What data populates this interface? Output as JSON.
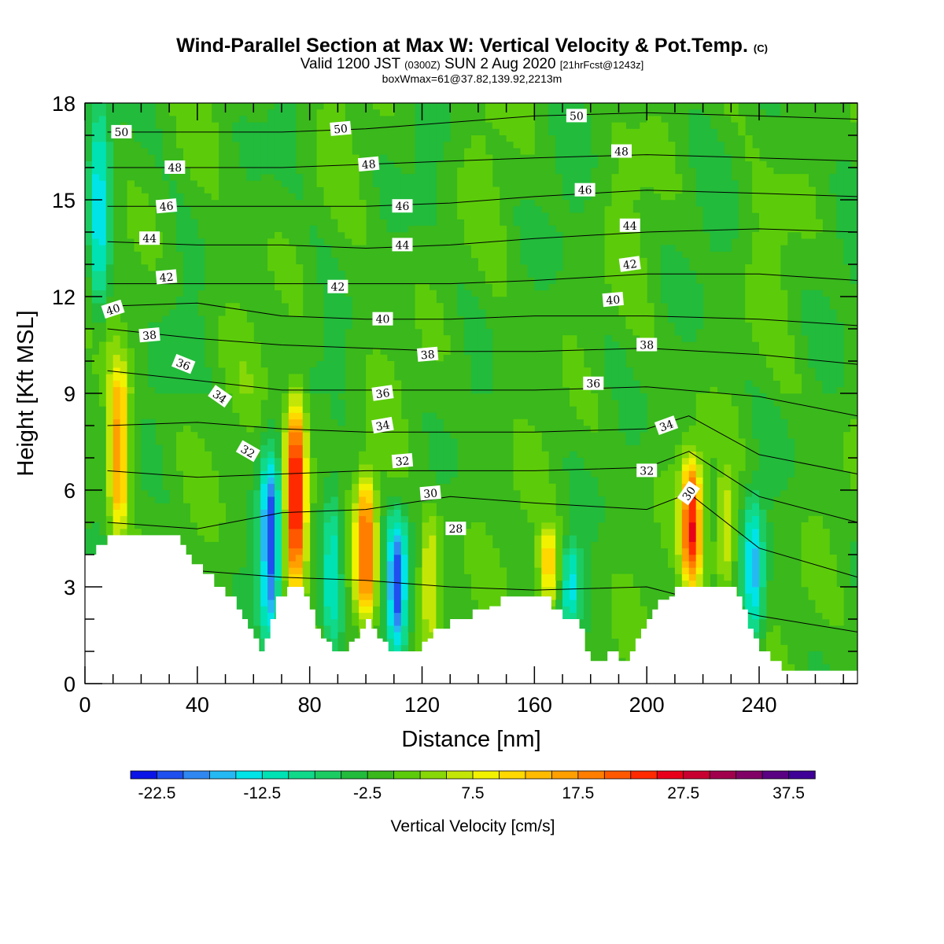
{
  "header": {
    "title_main": "Wind-Parallel Section at Max W: Vertical Velocity & Pot.Temp.",
    "title_mark": "(C)",
    "valid_prefix": "Valid 1200 JST",
    "valid_utc": "(0300Z)",
    "valid_date": "SUN 2 Aug 2020",
    "forecast": "[21hrFcst@1243z]",
    "boxmax": "boxWmax=61@37.82,139.92,2213m"
  },
  "colorbar": {
    "label": "Vertical Velocity [cm/s]",
    "tick_labels": [
      "-22.5",
      "-12.5",
      "-2.5",
      "7.5",
      "17.5",
      "27.5",
      "37.5"
    ],
    "levels": [
      -25,
      -22.5,
      -20,
      -17.5,
      -15,
      -12.5,
      -10,
      -7.5,
      -5,
      -2.5,
      0,
      2.5,
      5,
      7.5,
      10,
      12.5,
      15,
      17.5,
      20,
      22.5,
      25,
      27.5,
      30,
      32.5,
      35,
      37.5,
      40
    ],
    "colors": [
      "#0a14e6",
      "#1f4fee",
      "#2f88f2",
      "#25b9f4",
      "#00e4e8",
      "#00e2b4",
      "#10d98a",
      "#1ccc62",
      "#22bb3c",
      "#3ab81c",
      "#5ccc0a",
      "#88d808",
      "#c4e606",
      "#f2f200",
      "#ffd800",
      "#ffbb00",
      "#ff9f00",
      "#ff7e00",
      "#ff5800",
      "#ff2a00",
      "#e8001a",
      "#c80030",
      "#a0004c",
      "#800066",
      "#5a0082",
      "#3e0096"
    ]
  },
  "chart_data": {
    "type": "heatmap",
    "xlabel": "Distance [nm]",
    "ylabel": "Height [Kft MSL]",
    "xlim": [
      0,
      275
    ],
    "ylim": [
      0,
      18
    ],
    "x_ticks": [
      0,
      40,
      80,
      120,
      160,
      200,
      240
    ],
    "y_ticks": [
      0,
      3,
      6,
      9,
      12,
      15,
      18
    ],
    "field": "vertical velocity (cm/s), filled contours",
    "contour_field": "potential temperature (C), black isolines",
    "terrain_profile": {
      "x": [
        0,
        4,
        8,
        12,
        28,
        34,
        36,
        38,
        42,
        46,
        50,
        54,
        56,
        58,
        60,
        62,
        64,
        66,
        68,
        72,
        78,
        80,
        82,
        84,
        86,
        88,
        90,
        92,
        94,
        96,
        98,
        100,
        102,
        104,
        106,
        108,
        110,
        112,
        114,
        116,
        118,
        120,
        122,
        124,
        128,
        130,
        138,
        142,
        144,
        146,
        148,
        150,
        152,
        166,
        170,
        176,
        178,
        180,
        182,
        184,
        186,
        188,
        190,
        192,
        194,
        196,
        198,
        200,
        202,
        204,
        208,
        210,
        212,
        226,
        232,
        234,
        236,
        238,
        240,
        242,
        244,
        246,
        248,
        250,
        252,
        256,
        275
      ],
      "height": [
        4.0,
        4.3,
        4.6,
        4.6,
        4.6,
        4.3,
        4.0,
        3.7,
        3.4,
        3.0,
        2.7,
        2.3,
        2.0,
        1.7,
        1.4,
        1.0,
        1.4,
        2.0,
        2.7,
        3.0,
        2.7,
        2.3,
        1.7,
        1.4,
        1.3,
        1.0,
        1.0,
        1.0,
        1.3,
        1.4,
        1.7,
        2.0,
        1.7,
        1.4,
        1.3,
        1.0,
        1.0,
        1.0,
        1.0,
        1.0,
        1.0,
        1.3,
        1.4,
        1.7,
        1.7,
        2.0,
        2.3,
        2.3,
        2.4,
        2.4,
        2.7,
        2.7,
        2.7,
        2.3,
        2.0,
        1.7,
        1.0,
        0.7,
        0.7,
        0.7,
        1.0,
        1.0,
        0.7,
        0.7,
        1.0,
        1.4,
        1.7,
        2.0,
        2.3,
        2.6,
        2.7,
        3.0,
        3.0,
        3.0,
        2.7,
        2.3,
        1.7,
        1.4,
        1.0,
        1.0,
        0.7,
        0.7,
        0.4,
        0.4,
        0.4,
        0.4,
        0.4
      ]
    },
    "updrafts": [
      {
        "x": 12,
        "z_bottom": 4.6,
        "z_top": 9.8,
        "peak": 18
      },
      {
        "x": 75,
        "z_bottom": 3.0,
        "z_top": 8.7,
        "peak": 30
      },
      {
        "x": 100,
        "z_bottom": 2.0,
        "z_top": 6.4,
        "peak": 22
      },
      {
        "x": 123,
        "z_bottom": 1.4,
        "z_top": 5.4,
        "peak": 10
      },
      {
        "x": 165,
        "z_bottom": 2.4,
        "z_top": 4.8,
        "peak": 14
      },
      {
        "x": 216,
        "z_bottom": 3.0,
        "z_top": 7.0,
        "peak": 25
      },
      {
        "x": 228,
        "z_bottom": 2.9,
        "z_top": 6.5,
        "peak": 10
      }
    ],
    "downdrafts": [
      {
        "x": 66,
        "z_bottom": 1.4,
        "z_top": 7.2,
        "peak": -20
      },
      {
        "x": 88,
        "z_bottom": 1.2,
        "z_top": 6.2,
        "peak": -12
      },
      {
        "x": 111,
        "z_bottom": 1.0,
        "z_top": 5.2,
        "peak": -19
      },
      {
        "x": 173,
        "z_bottom": 1.7,
        "z_top": 4.4,
        "peak": -11
      },
      {
        "x": 238,
        "z_bottom": 1.2,
        "z_top": 5.8,
        "peak": -14
      },
      {
        "x": 5,
        "z_bottom": 11.0,
        "z_top": 17.8,
        "peak": -13
      }
    ],
    "isentropes": [
      {
        "label": "28",
        "levels": {
          "x": [
            8,
            40,
            70,
            100,
            130,
            160,
            200,
            240,
            275
          ],
          "height": [
            3.9,
            3.5,
            3.3,
            3.2,
            3.0,
            2.9,
            3.0,
            2.1,
            1.6
          ]
        }
      },
      {
        "label": "30",
        "levels": {
          "x": [
            8,
            40,
            70,
            100,
            130,
            160,
            200,
            215,
            240,
            275
          ],
          "height": [
            5.0,
            4.8,
            5.3,
            5.4,
            5.8,
            5.6,
            5.4,
            5.9,
            4.2,
            3.3
          ]
        }
      },
      {
        "label": "32",
        "levels": {
          "x": [
            8,
            40,
            70,
            100,
            130,
            160,
            200,
            215,
            240,
            275
          ],
          "height": [
            6.6,
            6.4,
            6.5,
            6.6,
            6.6,
            6.6,
            6.7,
            7.2,
            5.8,
            5.0
          ]
        }
      },
      {
        "label": "34",
        "levels": {
          "x": [
            8,
            40,
            70,
            100,
            130,
            160,
            200,
            215,
            240,
            275
          ],
          "height": [
            8.0,
            8.1,
            7.9,
            7.8,
            7.8,
            7.8,
            7.9,
            8.3,
            7.1,
            6.5
          ]
        }
      },
      {
        "label": "36",
        "levels": {
          "x": [
            8,
            40,
            70,
            100,
            130,
            160,
            200,
            240,
            275
          ],
          "height": [
            9.7,
            9.4,
            9.1,
            9.1,
            9.1,
            9.1,
            9.2,
            8.9,
            8.3
          ]
        }
      },
      {
        "label": "38",
        "levels": {
          "x": [
            8,
            40,
            70,
            100,
            130,
            160,
            200,
            240,
            275
          ],
          "height": [
            11.0,
            10.7,
            10.5,
            10.4,
            10.3,
            10.3,
            10.4,
            10.2,
            9.9
          ]
        }
      },
      {
        "label": "40",
        "levels": {
          "x": [
            8,
            40,
            70,
            100,
            130,
            160,
            200,
            240,
            275
          ],
          "height": [
            11.7,
            11.8,
            11.4,
            11.3,
            11.3,
            11.4,
            11.4,
            11.3,
            11.1
          ]
        }
      },
      {
        "label": "42",
        "levels": {
          "x": [
            8,
            40,
            70,
            100,
            130,
            160,
            200,
            240,
            275
          ],
          "height": [
            12.4,
            12.4,
            12.4,
            12.4,
            12.4,
            12.5,
            12.7,
            12.7,
            12.5
          ]
        }
      },
      {
        "label": "44",
        "levels": {
          "x": [
            8,
            40,
            70,
            100,
            130,
            160,
            200,
            240,
            275
          ],
          "height": [
            13.7,
            13.6,
            13.6,
            13.5,
            13.6,
            13.8,
            14.0,
            14.1,
            14.0
          ]
        }
      },
      {
        "label": "46",
        "levels": {
          "x": [
            8,
            40,
            70,
            100,
            130,
            160,
            200,
            240,
            275
          ],
          "height": [
            14.8,
            14.8,
            14.8,
            14.8,
            14.9,
            15.1,
            15.3,
            15.2,
            15.1
          ]
        }
      },
      {
        "label": "48",
        "levels": {
          "x": [
            8,
            40,
            70,
            100,
            130,
            160,
            200,
            240,
            275
          ],
          "height": [
            16.0,
            16.0,
            16.0,
            16.1,
            16.2,
            16.3,
            16.4,
            16.3,
            16.2
          ]
        }
      },
      {
        "label": "50",
        "levels": {
          "x": [
            8,
            40,
            70,
            100,
            130,
            160,
            200,
            240,
            275
          ],
          "height": [
            17.1,
            17.1,
            17.1,
            17.2,
            17.4,
            17.6,
            17.7,
            17.6,
            17.5
          ]
        }
      }
    ],
    "contour_labels": [
      {
        "text": "50",
        "x": 13,
        "y": 17.1,
        "rot": 0
      },
      {
        "text": "50",
        "x": 91,
        "y": 17.2,
        "rot": -5
      },
      {
        "text": "50",
        "x": 175,
        "y": 17.6,
        "rot": 0
      },
      {
        "text": "48",
        "x": 32,
        "y": 16.0,
        "rot": 0
      },
      {
        "text": "48",
        "x": 101,
        "y": 16.1,
        "rot": -5
      },
      {
        "text": "48",
        "x": 191,
        "y": 16.5,
        "rot": 0
      },
      {
        "text": "46",
        "x": 29,
        "y": 14.8,
        "rot": -5
      },
      {
        "text": "46",
        "x": 113,
        "y": 14.8,
        "rot": 0
      },
      {
        "text": "46",
        "x": 178,
        "y": 15.3,
        "rot": 0
      },
      {
        "text": "44",
        "x": 23,
        "y": 13.8,
        "rot": 0
      },
      {
        "text": "44",
        "x": 113,
        "y": 13.6,
        "rot": 0
      },
      {
        "text": "44",
        "x": 194,
        "y": 14.2,
        "rot": 0
      },
      {
        "text": "42",
        "x": 29,
        "y": 12.6,
        "rot": -5
      },
      {
        "text": "42",
        "x": 90,
        "y": 12.3,
        "rot": 0
      },
      {
        "text": "42",
        "x": 194,
        "y": 13.0,
        "rot": -8
      },
      {
        "text": "40",
        "x": 10,
        "y": 11.6,
        "rot": -18
      },
      {
        "text": "40",
        "x": 106,
        "y": 11.3,
        "rot": 0
      },
      {
        "text": "40",
        "x": 188,
        "y": 11.9,
        "rot": -5
      },
      {
        "text": "38",
        "x": 23,
        "y": 10.8,
        "rot": -5
      },
      {
        "text": "38",
        "x": 122,
        "y": 10.2,
        "rot": -5
      },
      {
        "text": "38",
        "x": 200,
        "y": 10.5,
        "rot": 0
      },
      {
        "text": "36",
        "x": 35,
        "y": 9.9,
        "rot": 22
      },
      {
        "text": "36",
        "x": 106,
        "y": 9.0,
        "rot": -8
      },
      {
        "text": "36",
        "x": 181,
        "y": 9.3,
        "rot": 0
      },
      {
        "text": "34",
        "x": 48,
        "y": 8.9,
        "rot": 35
      },
      {
        "text": "34",
        "x": 106,
        "y": 8.0,
        "rot": -10
      },
      {
        "text": "34",
        "x": 207,
        "y": 8.0,
        "rot": -20
      },
      {
        "text": "32",
        "x": 58,
        "y": 7.2,
        "rot": 30
      },
      {
        "text": "32",
        "x": 113,
        "y": 6.9,
        "rot": -5
      },
      {
        "text": "32",
        "x": 200,
        "y": 6.6,
        "rot": 0
      },
      {
        "text": "30",
        "x": 123,
        "y": 5.9,
        "rot": -5
      },
      {
        "text": "30",
        "x": 215,
        "y": 5.9,
        "rot": -55
      },
      {
        "text": "28",
        "x": 132,
        "y": 4.8,
        "rot": 0
      }
    ]
  }
}
